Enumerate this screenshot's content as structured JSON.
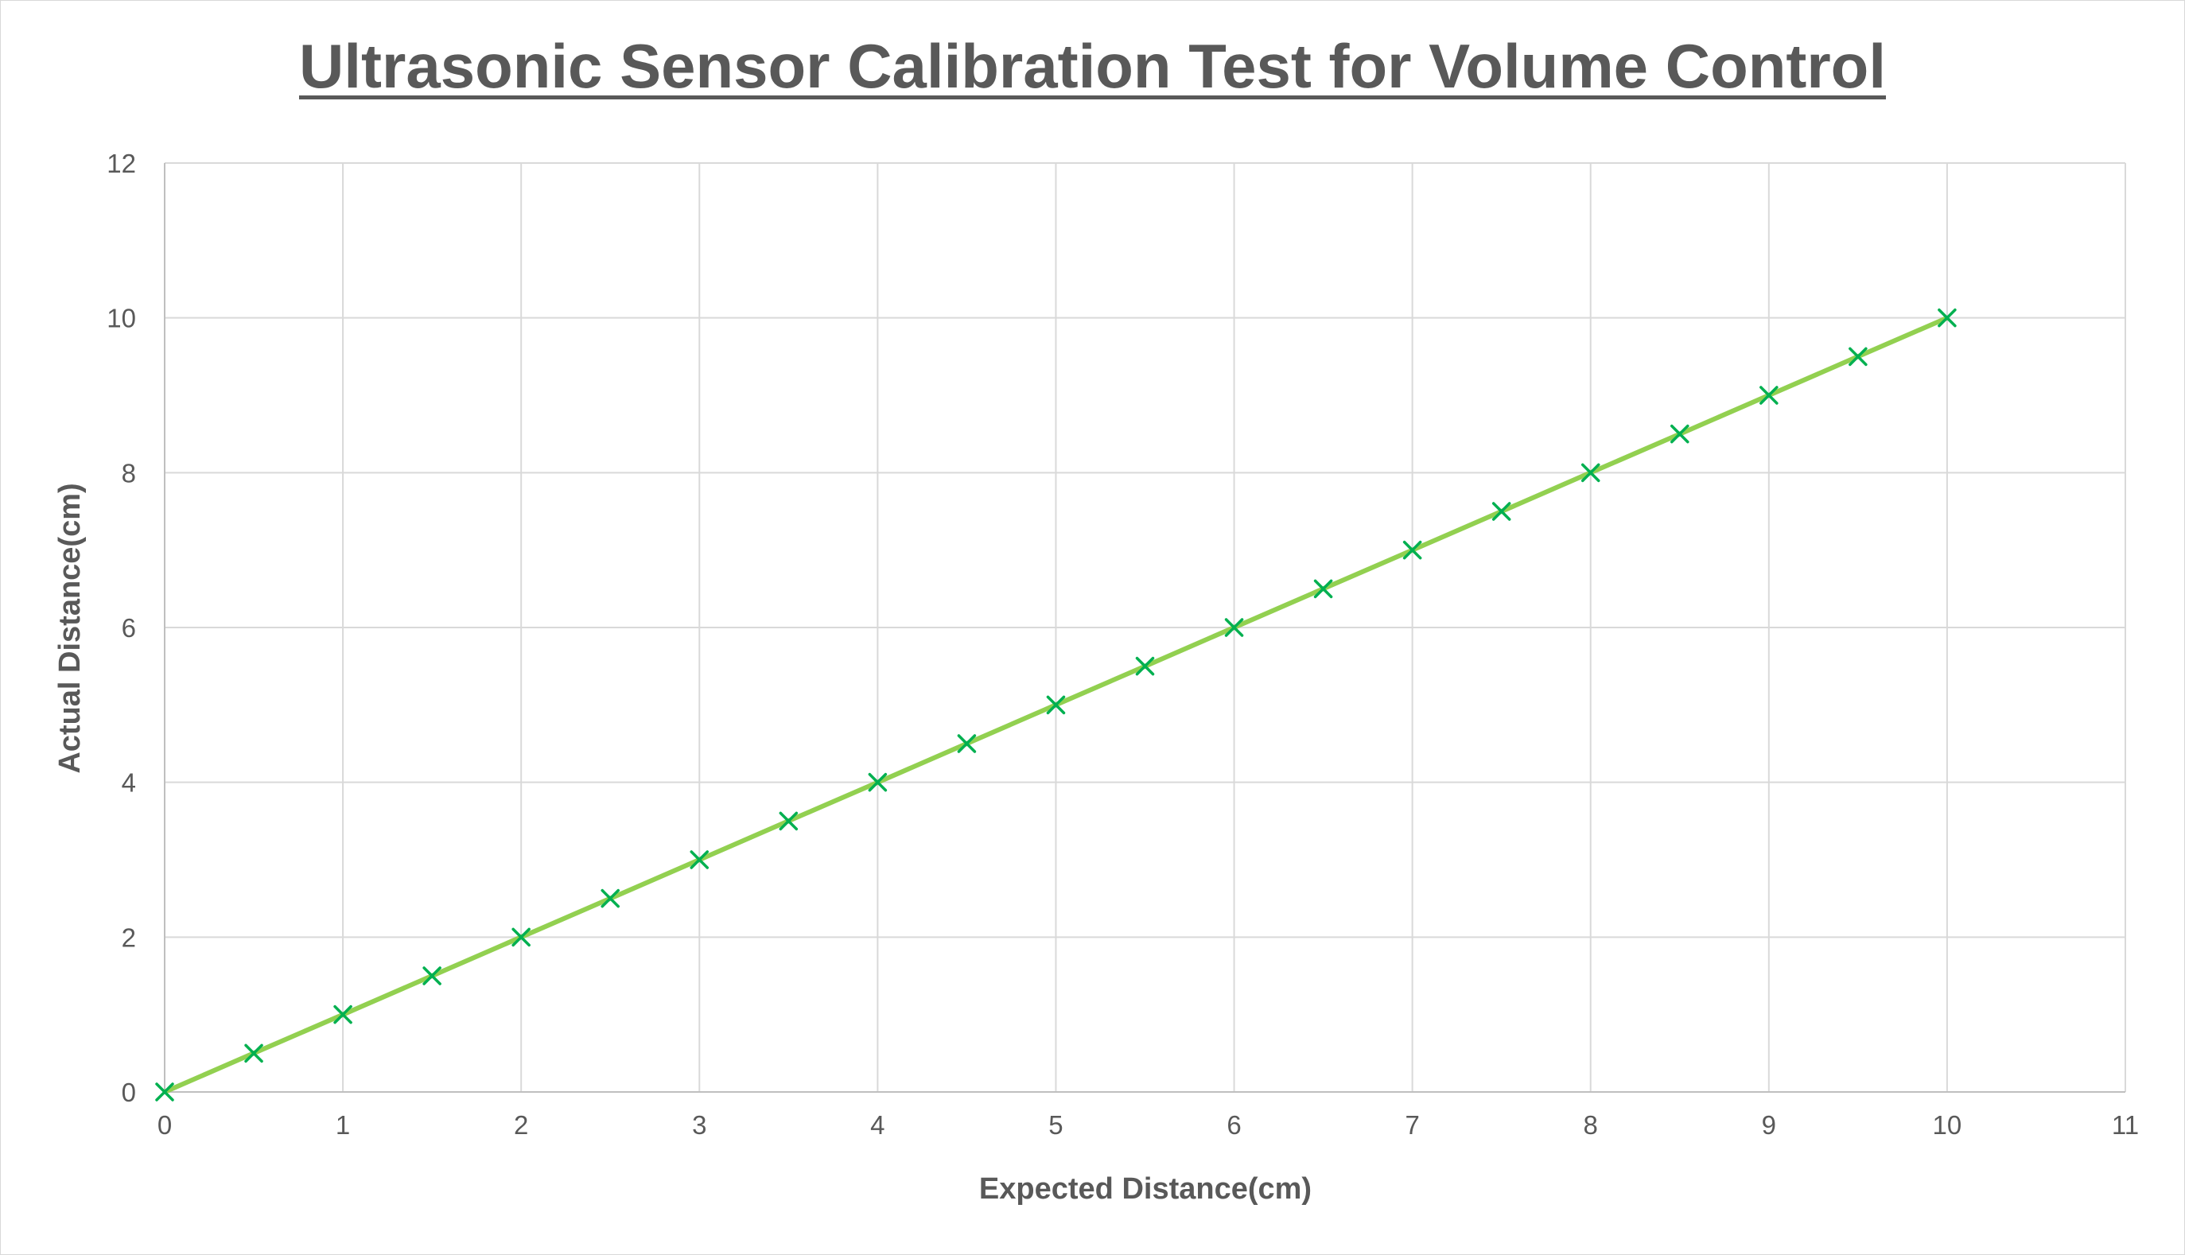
{
  "chart_data": {
    "type": "scatter",
    "title": "Ultrasonic Sensor Calibration Test for Volume Control",
    "xlabel": "Expected Distance(cm)",
    "ylabel": "Actual Distance(cm)",
    "xlim": [
      0,
      11
    ],
    "ylim": [
      0,
      12
    ],
    "x_ticks": [
      "0",
      "1",
      "2",
      "3",
      "4",
      "5",
      "6",
      "7",
      "8",
      "9",
      "10",
      "11"
    ],
    "y_ticks": [
      "0",
      "2",
      "4",
      "6",
      "8",
      "10",
      "12"
    ],
    "grid": true,
    "legend": "none",
    "series": [
      {
        "x": [
          0,
          0.5,
          1,
          1.5,
          2,
          2.5,
          3,
          3.5,
          4,
          4.5,
          5,
          5.5,
          6,
          6.5,
          7,
          7.5,
          8,
          8.5,
          9,
          9.5,
          10
        ],
        "y": [
          0,
          0.5,
          1,
          1.5,
          2,
          2.5,
          3,
          3.5,
          4,
          4.5,
          5,
          5.5,
          6,
          6.5,
          7,
          7.5,
          8,
          8.5,
          9,
          9.5,
          10
        ],
        "marker": "x",
        "line_color": "#92d050",
        "marker_color": "#00b050"
      }
    ],
    "grid_color": "#d9d9d9",
    "text_color": "#595959"
  }
}
